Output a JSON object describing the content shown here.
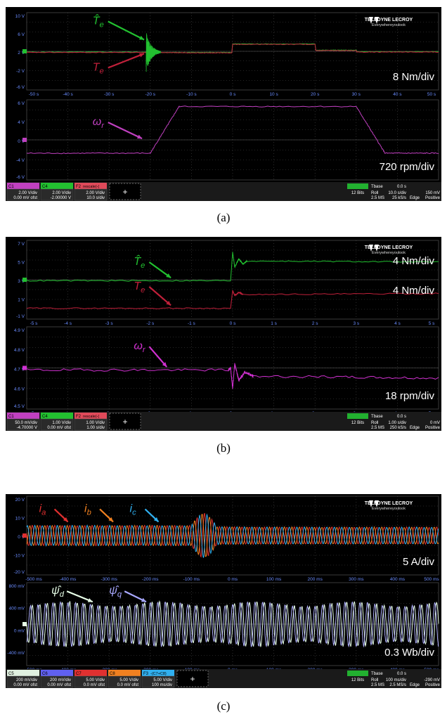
{
  "brand": {
    "name": "TELEDYNE LECROY",
    "tagline": "Everywhereyoulook"
  },
  "captions": [
    "(a)",
    "(b)",
    "(c)"
  ],
  "add_button": "+",
  "chart_data": [
    {
      "type": "line",
      "panel": "a",
      "grids": [
        {
          "ylim": [
            -10,
            10
          ],
          "yticks": [
            "10 V",
            "6 V",
            "2 V",
            "-2 V",
            "-6 V"
          ],
          "xlim": [
            -50,
            50
          ],
          "xticks": [
            "-50 s",
            "-40 s",
            "-30 s",
            "-20 s",
            "-10 s",
            "0 s",
            "10 s",
            "20 s",
            "30 s",
            "40 s",
            "50 s"
          ],
          "scale_label": "8 Nm/div",
          "series": [
            {
              "name": "T̂e",
              "color": "#22c030",
              "x": [
                -50,
                -21,
                -21,
                -18,
                -18,
                -10,
                -0.2,
                0,
                20,
                20.2,
                30,
                30.2,
                50
              ],
              "y": [
                -0.2,
                -0.2,
                -0.1,
                -0.1,
                -0.3,
                -0.3,
                -0.3,
                1.9,
                1.9,
                0.3,
                0.3,
                -0.1,
                -0.1
              ]
            },
            {
              "name": "Te",
              "color": "#c0203a",
              "x": [
                -50,
                -21,
                -21,
                -18,
                -18,
                -10,
                -0.2,
                0,
                20,
                20.2,
                30,
                30.2,
                50
              ],
              "y": [
                -0.3,
                -0.3,
                -0.3,
                -0.3,
                -0.3,
                -0.4,
                -0.4,
                1.8,
                1.8,
                0.2,
                0.2,
                -0.2,
                -0.2
              ]
            }
          ],
          "annotations": [
            {
              "label": "T̂e",
              "x": -34,
              "y": 7.0,
              "ax": -21.5,
              "ay": 3.0,
              "color": "#22c030"
            },
            {
              "label": "Te",
              "x": -34,
              "y": -5.0,
              "ax": -21.5,
              "ay": -0.6,
              "color": "#c0203a"
            }
          ]
        },
        {
          "ylim": [
            -6,
            6
          ],
          "yticks": [
            "6 V",
            "4 V",
            "0 V",
            "-4 V",
            "-6 V"
          ],
          "xlim": [
            -50,
            50
          ],
          "xticks": [
            "-50 s",
            "-40 s",
            "-30 s",
            "-20 s",
            "-10 s",
            "0 s",
            "10 s",
            "20 s",
            "30 s",
            "40 s",
            "50 s"
          ],
          "scale_label": "720 rpm/div",
          "series": [
            {
              "name": "ωr",
              "color": "#c040c0",
              "x": [
                -50,
                -20,
                -13,
                30,
                37,
                50
              ],
              "y": [
                -2,
                -2,
                5,
                5,
                -2,
                -2
              ]
            }
          ],
          "annotations": [
            {
              "label": "ωr",
              "x": -34,
              "y": 2.2,
              "ax": -22,
              "ay": 0.2,
              "color": "#c040c0"
            }
          ]
        }
      ],
      "channels": [
        {
          "name": "C1",
          "color": "#c040c0",
          "l1": "2.00 V/div",
          "l2": "0.00 mV ofst"
        },
        {
          "name": "C4",
          "color": "#22c030",
          "l1": "2.00 V/div",
          "l2": "-2.00000 V"
        },
        {
          "name": "F2",
          "title": "rescale(-(",
          "color": "#e04a5a",
          "l1": "2.00 V/div",
          "l2": "10.0 s/div"
        }
      ],
      "timebase": {
        "label": "Tbase",
        "value": "0.0 s",
        "bits": "12 Bits",
        "mode": "Roll",
        "sampling": "2.5 MS",
        "rate": "10.0 s/div",
        "rate2": "25 kS/s",
        "trig": "Edge",
        "trig_value": "150 mV",
        "trig_mode": "Positive"
      }
    },
    {
      "type": "line",
      "panel": "b",
      "grids": [
        {
          "ylim": [
            -1,
            7
          ],
          "yticks": [
            "7 V",
            "5 V",
            "3 V",
            "1 V",
            "-1 V"
          ],
          "xlim": [
            -5,
            5
          ],
          "xticks": [
            "-5 s",
            "-4 s",
            "-3 s",
            "-2 s",
            "-1 s",
            "0 s",
            "1 s",
            "2 s",
            "3 s",
            "4 s",
            "5 s"
          ],
          "scale_label_1": "4 Nm/div",
          "scale_label_2": "4 Nm/div",
          "series": [
            {
              "name": "T̂e",
              "color": "#22c030",
              "x": [
                -5,
                -0.05,
                0,
                0.05,
                0.15,
                0.25,
                0.35,
                5
              ],
              "y": [
                2.9,
                2.9,
                5.8,
                4.3,
                5.1,
                4.6,
                4.9,
                4.8
              ]
            },
            {
              "name": "Te",
              "color": "#c0203a",
              "x": [
                -5,
                -0.05,
                0,
                0.05,
                0.15,
                0.25,
                5
              ],
              "y": [
                0.1,
                0.1,
                1.9,
                1.4,
                1.7,
                1.5,
                1.6
              ]
            }
          ],
          "annotations": [
            {
              "label": "T̂e",
              "x": -2.4,
              "y": 4.5,
              "ax": -1.5,
              "ay": 3.2,
              "color": "#22c030"
            },
            {
              "label": "Te",
              "x": -2.4,
              "y": 2.0,
              "ax": -1.5,
              "ay": 0.4,
              "color": "#c0203a"
            }
          ]
        },
        {
          "ylim": [
            4.5,
            4.9
          ],
          "yticks": [
            "4.9 V",
            "4.8 V",
            "4.7 V",
            "4.6 V",
            "4.5 V"
          ],
          "xlim": [
            -5,
            5
          ],
          "xticks": [
            "-5 s",
            "-4 s",
            "-3 s",
            "-2 s",
            "-1 s",
            "0 s",
            "1 s",
            "2 s",
            "3 s",
            "4 s",
            "5 s"
          ],
          "scale_label": "18 rpm/div",
          "series": [
            {
              "name": "ωr",
              "color": "#d030d0",
              "x": [
                -5,
                -0.1,
                -0.05,
                0,
                0.05,
                0.15,
                0.3,
                0.5,
                5
              ],
              "y": [
                4.69,
                4.69,
                4.7,
                4.6,
                4.72,
                4.64,
                4.68,
                4.66,
                4.65
              ]
            }
          ],
          "annotations": [
            {
              "label": "ωr",
              "x": -2.4,
              "y": 4.79,
              "ax": -1.6,
              "ay": 4.705,
              "color": "#d030d0"
            }
          ]
        }
      ],
      "channels": [
        {
          "name": "C1",
          "color": "#c040c0",
          "l1": "50.0 mV/div",
          "l2": "-4.70000 V"
        },
        {
          "name": "C4",
          "color": "#22c030",
          "l1": "1.00 V/div",
          "l2": "0.00 mV ofst"
        },
        {
          "name": "F2",
          "title": "rescale(-(",
          "color": "#e04a5a",
          "l1": "1.00 V/div",
          "l2": "1.00 s/div"
        }
      ],
      "timebase": {
        "label": "Tbase",
        "value": "0.0 s",
        "bits": "12 Bits",
        "mode": "Roll",
        "sampling": "2.5 MS",
        "rate": "1.00 s/div",
        "rate2": "250 kS/s",
        "trig": "Edge",
        "trig_value": "0 mV",
        "trig_mode": "Positive"
      }
    },
    {
      "type": "line",
      "panel": "c",
      "grids": [
        {
          "ylim": [
            -20,
            20
          ],
          "yticks": [
            "20 V",
            "10 V",
            "0 V",
            "-10 V",
            "-20 V"
          ],
          "xlim": [
            -500,
            500
          ],
          "xticks": [
            "-500 ms",
            "-400 ms",
            "-300 ms",
            "-200 ms",
            "-100 ms",
            "0 ms",
            "100 ms",
            "200 ms",
            "300 ms",
            "400 ms",
            "500 ms"
          ],
          "scale_label": "5 A/div",
          "series": [
            {
              "name": "ia",
              "color": "#e03030",
              "freq_hz": 55,
              "amp_before": 5,
              "amp_after": 4.2,
              "change_ms": -100,
              "peak": 11,
              "phase": 0
            },
            {
              "name": "ib",
              "color": "#f08020",
              "freq_hz": 55,
              "amp_before": 5,
              "amp_after": 4.2,
              "change_ms": -100,
              "peak": 11,
              "phase": 2.094
            },
            {
              "name": "ic",
              "color": "#30b0f0",
              "freq_hz": 55,
              "amp_before": 5,
              "amp_after": 4.2,
              "change_ms": -100,
              "peak": 11,
              "phase": 4.189
            }
          ],
          "annotations": [
            {
              "label": "ia",
              "x": -470,
              "y": 12,
              "ax": -400,
              "ay": 7,
              "color": "#e03030"
            },
            {
              "label": "ib",
              "x": -360,
              "y": 12,
              "ax": -290,
              "ay": 7,
              "color": "#f08020"
            },
            {
              "label": "ic",
              "x": -250,
              "y": 12,
              "ax": -180,
              "ay": 7,
              "color": "#30b0f0"
            }
          ]
        },
        {
          "ylim": [
            -800,
            800
          ],
          "yticks": [
            "800 mV",
            "400 mV",
            "0 mV",
            "-400 mV"
          ],
          "xlim": [
            -500,
            500
          ],
          "xticks": [
            "-500 ms",
            "-400 ms",
            "-300 ms",
            "-200 ms",
            "-100 ms",
            "0 ms",
            "100 ms",
            "200 ms",
            "300 ms",
            "400 ms",
            "500 ms"
          ],
          "scale_label": "0.3 Wb/div",
          "series": [
            {
              "name": "ψ̂d",
              "color": "#e8ffe8",
              "freq_hz": 55,
              "amp": 380,
              "phase": 0
            },
            {
              "name": "ψ̂q",
              "color": "#b0b0ff",
              "freq_hz": 55,
              "amp": 380,
              "phase": 1.571
            }
          ],
          "annotations": [
            {
              "label": "ψ̂d",
              "x": -440,
              "y": 580,
              "ax": -340,
              "ay": 430,
              "color": "#e8ffe8"
            },
            {
              "label": "ψ̂q",
              "x": -300,
              "y": 580,
              "ax": -210,
              "ay": 430,
              "color": "#a8a8ff"
            }
          ]
        }
      ],
      "channels": [
        {
          "name": "C5",
          "color": "#e0f0e0",
          "l1": "200 mV/div",
          "l2": "0.00 mV ofst"
        },
        {
          "name": "C6",
          "color": "#6060f0",
          "l1": "200 mV/div",
          "l2": "0.00 mV ofst"
        },
        {
          "name": "C7",
          "color": "#e03030",
          "l1": "5.00 V/div",
          "l2": "0.0 mV ofst"
        },
        {
          "name": "C8",
          "color": "#f08020",
          "l1": "5.00 V/div",
          "l2": "0.0 mV ofst"
        },
        {
          "name": "F3",
          "title": "-(C7+C8)",
          "color": "#30b0f0",
          "l1": "5.00 V/div",
          "l2": "100 ms/div"
        }
      ],
      "timebase": {
        "label": "Tbase",
        "value": "0.0 s",
        "bits": "12 Bits",
        "mode": "Roll",
        "sampling": "2.5 MS",
        "rate": "100 ms/div",
        "rate2": "2.5 MS/s",
        "trig": "Edge",
        "trig_value": "-290 mV",
        "trig_mode": "Positive"
      }
    }
  ]
}
